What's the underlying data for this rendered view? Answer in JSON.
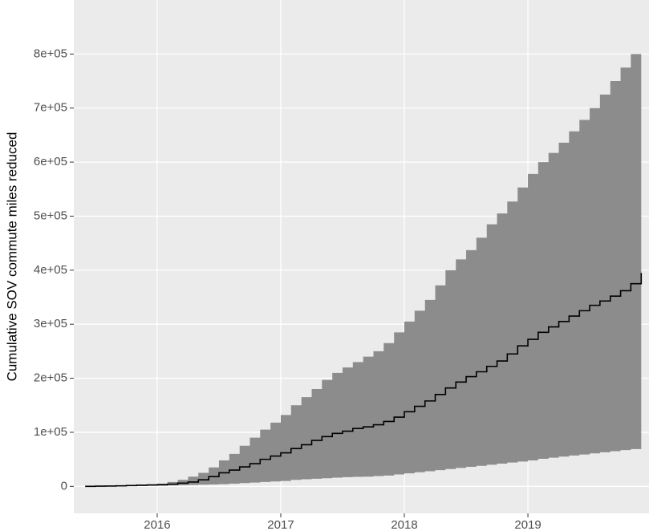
{
  "chart_data": {
    "type": "step-ribbon",
    "y_label": "Cumulative SOV commute miles reduced",
    "x": [
      2015.417,
      2015.5,
      2015.583,
      2015.667,
      2015.75,
      2015.833,
      2015.917,
      2016.0,
      2016.083,
      2016.167,
      2016.25,
      2016.333,
      2016.417,
      2016.5,
      2016.583,
      2016.667,
      2016.75,
      2016.833,
      2016.917,
      2017.0,
      2017.083,
      2017.167,
      2017.25,
      2017.333,
      2017.417,
      2017.5,
      2017.583,
      2017.667,
      2017.75,
      2017.833,
      2017.917,
      2018.0,
      2018.083,
      2018.167,
      2018.25,
      2018.333,
      2018.417,
      2018.5,
      2018.583,
      2018.667,
      2018.75,
      2018.833,
      2018.917,
      2019.0,
      2019.083,
      2019.167,
      2019.25,
      2019.333,
      2019.417,
      2019.5,
      2019.583,
      2019.667,
      2019.75,
      2019.833,
      2019.917
    ],
    "upper": [
      0,
      500,
      1000,
      1500,
      2000,
      3000,
      4000,
      5000,
      8000,
      12000,
      18000,
      25000,
      35000,
      48000,
      60000,
      75000,
      90000,
      105000,
      118000,
      132000,
      150000,
      165000,
      180000,
      197000,
      210000,
      220000,
      230000,
      240000,
      250000,
      265000,
      285000,
      305000,
      325000,
      345000,
      372000,
      400000,
      420000,
      437000,
      460000,
      485000,
      505000,
      527000,
      553000,
      578000,
      600000,
      617000,
      636000,
      657000,
      678000,
      700000,
      725000,
      750000,
      775000,
      800000,
      820000
    ],
    "values": [
      0,
      300,
      600,
      1000,
      1500,
      2000,
      2500,
      3000,
      4000,
      6000,
      8000,
      12000,
      18000,
      25000,
      30000,
      36000,
      42000,
      50000,
      56000,
      62000,
      70000,
      77000,
      85000,
      92000,
      98000,
      102000,
      107000,
      110000,
      114000,
      120000,
      128000,
      138000,
      148000,
      158000,
      170000,
      182000,
      193000,
      203000,
      212000,
      222000,
      232000,
      245000,
      260000,
      272000,
      285000,
      295000,
      305000,
      315000,
      325000,
      335000,
      343000,
      352000,
      362000,
      375000,
      395000
    ],
    "lower": [
      0,
      100,
      200,
      300,
      500,
      700,
      900,
      1000,
      1500,
      2000,
      2500,
      3000,
      3500,
      4000,
      5000,
      6000,
      7000,
      8000,
      9000,
      10000,
      12000,
      13000,
      14000,
      15000,
      16000,
      17000,
      17500,
      18000,
      19000,
      20000,
      22000,
      24000,
      26000,
      28000,
      30000,
      32000,
      34000,
      36000,
      38000,
      40000,
      42000,
      44000,
      46000,
      48000,
      51000,
      53000,
      55000,
      57000,
      59000,
      61000,
      63000,
      65000,
      67000,
      69000,
      71000
    ],
    "ribbon_color": "#8c8c8c",
    "line_color": "#000000",
    "xlim": [
      2015.325,
      2019.98
    ],
    "xticks": [
      2016,
      2017,
      2018,
      2019
    ],
    "ylim": [
      -50000,
      900000
    ],
    "yticks": [
      0,
      {
        "value": 100000,
        "label": "1e+05"
      },
      {
        "value": 200000,
        "label": "2e+05"
      },
      {
        "value": 300000,
        "label": "3e+05"
      },
      {
        "value": 400000,
        "label": "4e+05"
      },
      {
        "value": 500000,
        "label": "5e+05"
      },
      {
        "value": 600000,
        "label": "6e+05"
      },
      {
        "value": 700000,
        "label": "7e+05"
      },
      {
        "value": 800000,
        "label": "8e+05"
      }
    ],
    "grid": true
  }
}
